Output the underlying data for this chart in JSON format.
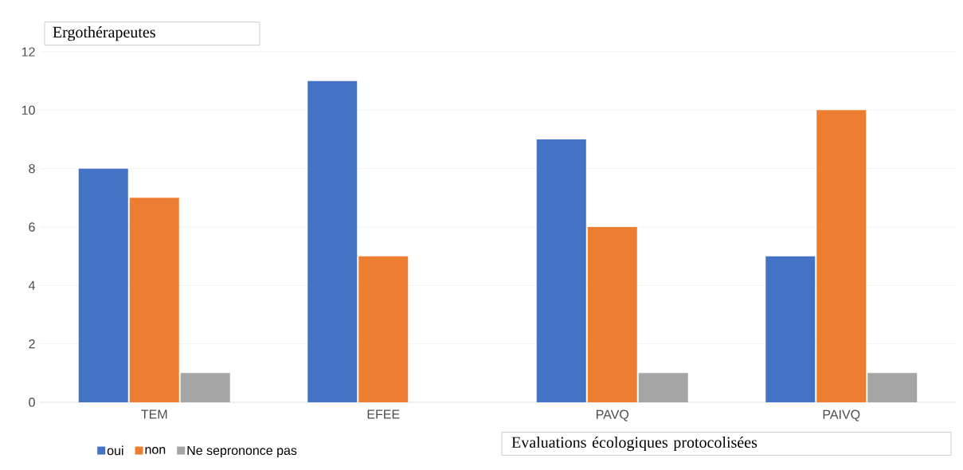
{
  "chart_data": {
    "type": "bar",
    "title": "Ergothérapeutes",
    "xlabel": "Evaluations écologiques protocolisées",
    "categories": [
      "TEM",
      "EFEE",
      "PAVQ",
      "PAIVQ"
    ],
    "series": [
      {
        "name": "oui",
        "color": "#4472c4",
        "values": [
          8,
          11,
          9,
          5
        ]
      },
      {
        "name": "non",
        "color": "#ed7d31",
        "values": [
          7,
          5,
          6,
          10
        ]
      },
      {
        "name": "Ne seprononce pas",
        "color": "#a5a5a5",
        "values": [
          1,
          null,
          1,
          1
        ]
      }
    ],
    "ylim": [
      0,
      12
    ],
    "yticks": [
      0,
      2,
      4,
      6,
      8,
      10,
      12
    ],
    "grid": "y",
    "legend": "bottom"
  }
}
